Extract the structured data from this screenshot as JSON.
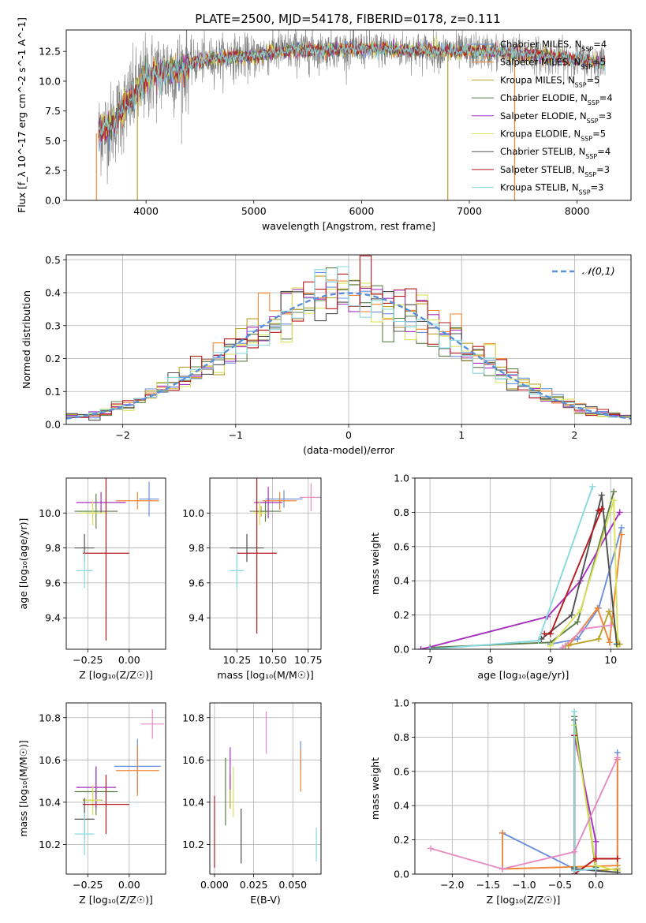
{
  "figure": {
    "title": "PLATE=2500, MJD=54178, FIBERID=0178, z=0.111"
  },
  "models": [
    {
      "key": "chab_miles",
      "label": "Chabrier MILES, N_SSP=4",
      "color": "#6a8fdc"
    },
    {
      "key": "salp_miles",
      "label": "Salpeter MILES, N_SSP=5",
      "color": "#ef8636"
    },
    {
      "key": "krou_miles",
      "label": "Kroupa MILES, N_SSP=5",
      "color": "#bba22a"
    },
    {
      "key": "chab_elodie",
      "label": "Chabrier ELODIE, N_SSP=4",
      "color": "#5d7f4a"
    },
    {
      "key": "salp_elodie",
      "label": "Salpeter ELODIE, N_SSP=3",
      "color": "#a62fbf"
    },
    {
      "key": "krou_elodie",
      "label": "Kroupa ELODIE, N_SSP=5",
      "color": "#d9e35a"
    },
    {
      "key": "chab_stelib",
      "label": "Chabrier STELIB, N_SSP=4",
      "color": "#505050"
    },
    {
      "key": "salp_stelib",
      "label": "Salpeter STELIB, N_SSP=3",
      "color": "#b8191d"
    },
    {
      "key": "krou_stelib",
      "label": "Kroupa STELIB, N_SSP=3",
      "color": "#87d9de"
    }
  ],
  "chart_data": [
    {
      "id": "spectrum",
      "type": "line",
      "title": "PLATE=2500, MJD=54178, FIBERID=0178, z=0.111",
      "xlabel": "wavelength [Angstrom, rest frame]",
      "ylabel": "Flux [f_λ 10^-17 erg cm^-2 s^-1 A^-1]",
      "xlim": [
        3260,
        8500
      ],
      "ylim": [
        0,
        14.3
      ],
      "xticks": [
        4000,
        5000,
        6000,
        7000,
        8000
      ],
      "yticks": [
        0.0,
        2.5,
        5.0,
        7.5,
        10.0,
        12.5
      ],
      "legend": "upper-right",
      "data_color": "#808080",
      "continuum": {
        "x": [
          3600,
          3700,
          3800,
          3900,
          3950,
          4000,
          4100,
          4200,
          4300,
          4400,
          4500,
          4600,
          4700,
          4800,
          4900,
          5000,
          5200,
          5400,
          5600,
          5800,
          6000,
          6200,
          6400,
          6600,
          6800,
          7000,
          7200,
          7400,
          7600,
          7800,
          8000,
          8250
        ],
        "y": [
          5.8,
          6.5,
          7.8,
          9.0,
          9.5,
          10.3,
          10.6,
          10.9,
          10.8,
          11.4,
          11.7,
          11.8,
          12.0,
          12.1,
          12.0,
          12.1,
          12.5,
          12.6,
          12.6,
          12.7,
          12.7,
          12.7,
          12.6,
          12.6,
          12.5,
          12.5,
          12.5,
          12.3,
          12.2,
          12.0,
          11.8,
          11.6
        ]
      },
      "model_range": [
        3560,
        8260
      ]
    },
    {
      "id": "residuals",
      "type": "bar",
      "xlabel": "(data-model)/error",
      "ylabel": "Normed distribution",
      "xlim": [
        -2.5,
        2.5
      ],
      "ylim": [
        0,
        0.515
      ],
      "xticks": [
        -2,
        -1,
        0,
        1,
        2
      ],
      "yticks": [
        0.0,
        0.1,
        0.2,
        0.3,
        0.4,
        0.5
      ],
      "bin_width": 0.1,
      "reference": {
        "label": "𝒩(0,1)",
        "color": "#5b8fd7"
      },
      "legend": "upper-right"
    },
    {
      "id": "age_vs_Z",
      "type": "scatter",
      "xlabel": "Z [log10(Z/Z☉)]",
      "ylabel": "age [log10(age/yr)]",
      "xlim": [
        -0.38,
        0.22
      ],
      "ylim": [
        9.22,
        10.2
      ],
      "xticks": [
        -0.25,
        0.0
      ],
      "yticks": [
        9.4,
        9.6,
        9.8,
        10.0
      ],
      "points": [
        {
          "model": "chab_miles",
          "x": 0.12,
          "xerr": 0.06,
          "y": 10.08,
          "yerr": 0.1
        },
        {
          "model": "salp_miles",
          "x": 0.05,
          "xerr": 0.13,
          "y": 10.07,
          "yerr": 0.05
        },
        {
          "model": "krou_miles",
          "x": -0.22,
          "xerr": 0.04,
          "y": 10.0,
          "yerr": 0.03
        },
        {
          "model": "chab_elodie",
          "x": -0.2,
          "xerr": 0.13,
          "y": 10.01,
          "yerr": 0.1
        },
        {
          "model": "salp_elodie",
          "x": -0.17,
          "xerr": 0.15,
          "y": 10.06,
          "yerr": 0.06
        },
        {
          "model": "krou_elodie",
          "x": -0.22,
          "xerr": 0.08,
          "y": 10.0,
          "yerr": 0.07
        },
        {
          "model": "chab_stelib",
          "x": -0.27,
          "xerr": 0.06,
          "y": 9.8,
          "yerr": 0.08
        },
        {
          "model": "salp_stelib",
          "x": -0.14,
          "xerr": 0.14,
          "y": 9.77,
          "yerr": 0.5
        },
        {
          "model": "krou_stelib",
          "x": -0.27,
          "xerr": 0.05,
          "y": 9.67,
          "yerr": 0.1
        }
      ]
    },
    {
      "id": "age_vs_mass",
      "type": "scatter",
      "xlabel": "mass [log10(M/M☉)]",
      "ylabel": "",
      "xlim": [
        10.06,
        10.84
      ],
      "ylim": [
        9.22,
        10.2
      ],
      "xticks": [
        10.25,
        10.5,
        10.75
      ],
      "yticks": [
        9.4,
        9.6,
        9.8,
        10.0
      ],
      "points": [
        {
          "model": "chab_miles",
          "x": 10.58,
          "xerr": 0.13,
          "y": 10.08,
          "yerr": 0.05
        },
        {
          "model": "salp_miles",
          "x": 10.55,
          "xerr": 0.12,
          "y": 10.07,
          "yerr": 0.05
        },
        {
          "model": "krou_miles",
          "x": 10.42,
          "xerr": 0.05,
          "y": 10.01,
          "yerr": 0.03
        },
        {
          "model": "chab_elodie",
          "x": 10.45,
          "xerr": 0.11,
          "y": 10.01,
          "yerr": 0.06
        },
        {
          "model": "salp_elodie",
          "x": 10.47,
          "xerr": 0.1,
          "y": 10.06,
          "yerr": 0.09
        },
        {
          "model": "krou_elodie",
          "x": 10.41,
          "xerr": 0.05,
          "y": 10.0,
          "yerr": 0.07
        },
        {
          "model": "chab_stelib",
          "x": 10.32,
          "xerr": 0.12,
          "y": 9.8,
          "yerr": 0.08
        },
        {
          "model": "salp_stelib",
          "x": 10.39,
          "xerr": 0.14,
          "y": 9.77,
          "yerr": 0.46
        },
        {
          "model": "krou_stelib",
          "x": 10.25,
          "xerr": 0.05,
          "y": 9.67,
          "yerr": 0.1
        },
        {
          "model": "pink_extra",
          "x": 10.77,
          "xerr": 0.08,
          "y": 10.09,
          "yerr": 0.08
        }
      ]
    },
    {
      "id": "massweight_vs_age",
      "type": "line",
      "xlabel": "age [log10(age/yr)]",
      "ylabel": "mass weight",
      "xlim": [
        6.75,
        10.35
      ],
      "ylim": [
        0,
        1.0
      ],
      "xticks": [
        7,
        8,
        9,
        10
      ],
      "yticks": [
        0.0,
        0.2,
        0.4,
        0.6,
        0.8,
        1.0
      ],
      "series": [
        {
          "model": "chab_miles",
          "x": [
            9.0,
            9.45,
            9.8,
            10.18
          ],
          "y": [
            0.03,
            0.06,
            0.24,
            0.71
          ]
        },
        {
          "model": "salp_miles",
          "x": [
            9.3,
            9.78,
            9.98,
            10.18
          ],
          "y": [
            0.02,
            0.24,
            0.04,
            0.67
          ]
        },
        {
          "model": "krou_miles",
          "x": [
            9.25,
            9.8,
            9.97,
            10.15
          ],
          "y": [
            0.02,
            0.06,
            0.22,
            0.03
          ]
        },
        {
          "model": "chab_elodie",
          "x": [
            7.0,
            9.0,
            9.45,
            10.05
          ],
          "y": [
            0.01,
            0.04,
            0.16,
            0.92
          ]
        },
        {
          "model": "salp_elodie",
          "x": [
            6.85,
            8.95,
            9.5,
            10.15
          ],
          "y": [
            0.0,
            0.19,
            0.4,
            0.8
          ]
        },
        {
          "model": "krou_elodie",
          "x": [
            9.0,
            9.5,
            10.05,
            10.12
          ],
          "y": [
            0.02,
            0.23,
            0.87,
            0.02
          ]
        },
        {
          "model": "chab_stelib",
          "x": [
            8.85,
            9.35,
            9.85,
            10.1
          ],
          "y": [
            0.06,
            0.2,
            0.9,
            0.03
          ]
        },
        {
          "model": "salp_stelib",
          "x": [
            8.9,
            9.0,
            9.85,
            9.8
          ],
          "y": [
            0.09,
            0.09,
            0.82,
            0.81
          ]
        },
        {
          "model": "krou_stelib",
          "x": [
            7.0,
            8.8,
            9.7
          ],
          "y": [
            0.0,
            0.05,
            0.95
          ]
        },
        {
          "model": "pink_extra",
          "x": [
            9.2,
            9.55,
            10.0
          ],
          "y": [
            0.01,
            0.12,
            0.14
          ]
        }
      ]
    },
    {
      "id": "mass_vs_Z",
      "type": "scatter",
      "xlabel": "Z [log10(Z/Z☉)]",
      "ylabel": "mass [log10(M/M☉)]",
      "xlim": [
        -0.38,
        0.22
      ],
      "ylim": [
        10.06,
        10.87
      ],
      "xticks": [
        -0.25,
        0.0
      ],
      "yticks": [
        10.2,
        10.4,
        10.6,
        10.8
      ],
      "points": [
        {
          "model": "chab_miles",
          "x": 0.05,
          "xerr": 0.14,
          "y": 10.57,
          "yerr": 0.13
        },
        {
          "model": "salp_miles",
          "x": 0.05,
          "xerr": 0.13,
          "y": 10.55,
          "yerr": 0.12
        },
        {
          "model": "krou_miles",
          "x": -0.22,
          "xerr": 0.06,
          "y": 10.41,
          "yerr": 0.04
        },
        {
          "model": "chab_elodie",
          "x": -0.2,
          "xerr": 0.13,
          "y": 10.45,
          "yerr": 0.11
        },
        {
          "model": "salp_elodie",
          "x": -0.2,
          "xerr": 0.12,
          "y": 10.47,
          "yerr": 0.1
        },
        {
          "model": "krou_elodie",
          "x": -0.22,
          "xerr": 0.05,
          "y": 10.41,
          "yerr": 0.07
        },
        {
          "model": "chab_stelib",
          "x": -0.27,
          "xerr": 0.06,
          "y": 10.32,
          "yerr": 0.1
        },
        {
          "model": "salp_stelib",
          "x": -0.14,
          "xerr": 0.14,
          "y": 10.39,
          "yerr": 0.14
        },
        {
          "model": "krou_stelib",
          "x": -0.27,
          "xerr": 0.06,
          "y": 10.25,
          "yerr": 0.1
        },
        {
          "model": "pink_extra",
          "x": 0.14,
          "xerr": 0.07,
          "y": 10.77,
          "yerr": 0.07
        }
      ]
    },
    {
      "id": "mass_vs_EBV",
      "type": "scatter",
      "xlabel": "E(B-V)",
      "ylabel": "",
      "xlim": [
        -0.003,
        0.068
      ],
      "ylim": [
        10.06,
        10.87
      ],
      "xticks": [
        0.0,
        0.025,
        0.05
      ],
      "xtick_labels": [
        "0.000",
        "0.025",
        "0.050"
      ],
      "yticks": [
        10.2,
        10.4,
        10.6,
        10.8
      ],
      "points": [
        {
          "model": "chab_miles",
          "x": 0.055,
          "y": 10.62,
          "yerr": 0.07
        },
        {
          "model": "salp_miles",
          "x": 0.055,
          "y": 10.55,
          "yerr": 0.1
        },
        {
          "model": "krou_miles",
          "x": 0.01,
          "y": 10.45,
          "yerr": 0.08
        },
        {
          "model": "chab_elodie",
          "x": 0.007,
          "y": 10.45,
          "yerr": 0.16
        },
        {
          "model": "salp_elodie",
          "x": 0.01,
          "y": 10.56,
          "yerr": 0.1
        },
        {
          "model": "krou_elodie",
          "x": 0.012,
          "y": 10.45,
          "yerr": 0.12
        },
        {
          "model": "chab_stelib",
          "x": 0.017,
          "y": 10.24,
          "yerr": 0.13
        },
        {
          "model": "salp_stelib",
          "x": 0.0,
          "y": 10.26,
          "yerr": 0.17
        },
        {
          "model": "krou_stelib",
          "x": 0.065,
          "y": 10.2,
          "yerr": 0.08
        },
        {
          "model": "pink_extra",
          "x": 0.033,
          "y": 10.73,
          "yerr": 0.1
        }
      ]
    },
    {
      "id": "massweight_vs_Z",
      "type": "line",
      "xlabel": "Z [log10(Z/Z☉)]",
      "ylabel": "mass weight",
      "xlim": [
        -2.52,
        0.5
      ],
      "ylim": [
        0,
        1.0
      ],
      "xticks": [
        -2.0,
        -1.5,
        -1.0,
        -0.5,
        0.0
      ],
      "yticks": [
        0.0,
        0.2,
        0.4,
        0.6,
        0.8,
        1.0
      ],
      "series": [
        {
          "model": "chab_miles",
          "x": [
            -1.3,
            -0.3,
            0.3,
            0.3
          ],
          "y": [
            0.24,
            0.03,
            0.01,
            0.71
          ]
        },
        {
          "model": "salp_miles",
          "x": [
            -1.3,
            -1.3,
            0.3,
            0.3
          ],
          "y": [
            0.24,
            0.03,
            0.05,
            0.67
          ]
        },
        {
          "model": "krou_miles",
          "x": [
            -0.3,
            -0.3,
            0.0,
            0.3
          ],
          "y": [
            0.02,
            0.92,
            0.02,
            0.03
          ]
        },
        {
          "model": "chab_elodie",
          "x": [
            -0.3,
            -0.3,
            0.0
          ],
          "y": [
            0.04,
            0.92,
            0.04
          ]
        },
        {
          "model": "salp_elodie",
          "x": [
            -0.3,
            -0.3,
            0.0,
            0.0
          ],
          "y": [
            0.0,
            0.81,
            0.19,
            0.02
          ]
        },
        {
          "model": "krou_elodie",
          "x": [
            -0.3,
            -0.3,
            0.0,
            0.3
          ],
          "y": [
            0.02,
            0.87,
            0.05,
            0.02
          ]
        },
        {
          "model": "chab_stelib",
          "x": [
            -0.3,
            -0.3,
            0.3
          ],
          "y": [
            0.9,
            0.03,
            0.01
          ]
        },
        {
          "model": "salp_stelib",
          "x": [
            -0.3,
            -0.3,
            0.0,
            0.3
          ],
          "y": [
            0.81,
            0.0,
            0.09,
            0.09
          ]
        },
        {
          "model": "krou_stelib",
          "x": [
            -0.3,
            -0.3,
            0.0
          ],
          "y": [
            0.95,
            0.02,
            0.03
          ]
        },
        {
          "model": "pink_extra",
          "x": [
            -2.3,
            -1.3,
            -0.3,
            0.3
          ],
          "y": [
            0.15,
            0.03,
            0.13,
            0.68
          ]
        }
      ]
    }
  ]
}
